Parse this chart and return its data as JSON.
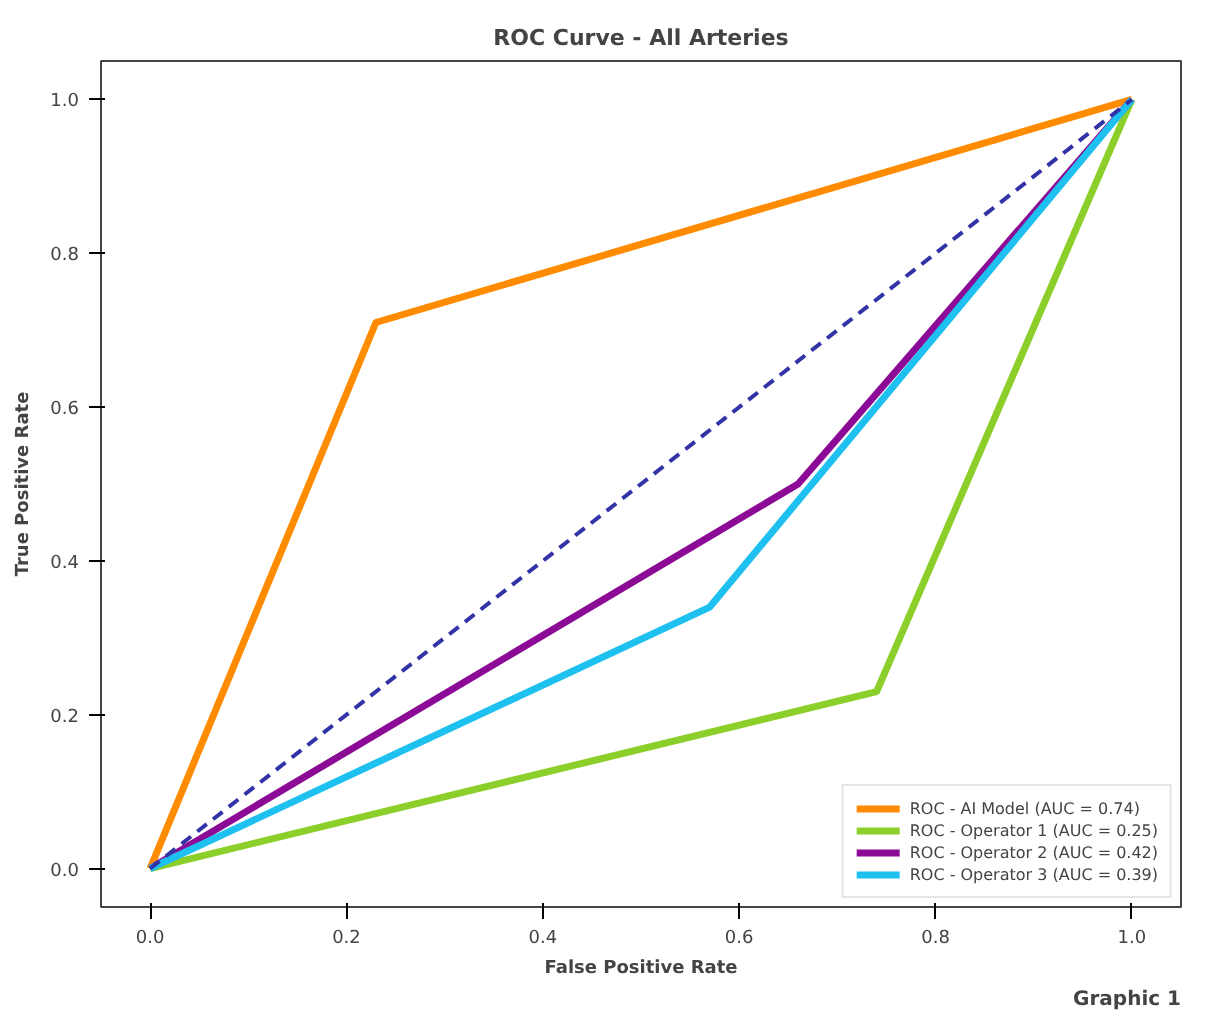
{
  "chart_data": {
    "type": "line",
    "title": "ROC Curve - All Arteries",
    "xlabel": "False Positive Rate",
    "ylabel": "True Positive Rate",
    "xlim": [
      -0.05,
      1.05
    ],
    "ylim": [
      -0.05,
      1.05
    ],
    "xticks": [
      {
        "value": 0,
        "label": "0.0"
      },
      0.2,
      0.4,
      0.6,
      0.8,
      {
        "value": 1,
        "label": "1.0"
      }
    ],
    "yticks": [
      {
        "value": 0,
        "label": "0.0"
      },
      0.2,
      0.4,
      0.6,
      0.8,
      {
        "value": 1,
        "label": "1.0"
      }
    ],
    "grid": false,
    "legend": "bottom right",
    "marker": "none",
    "series": [
      {
        "name": "ROC - AI Model (AUC = 0.74)",
        "color": "#ff8c00",
        "x": [
          0,
          0.23,
          1
        ],
        "values": [
          0,
          0.71,
          1
        ]
      },
      {
        "name": "ROC - Operator 1 (AUC = 0.25)",
        "color": "#8ccf2a",
        "x": [
          0,
          0.74,
          1
        ],
        "values": [
          0,
          0.23,
          1
        ]
      },
      {
        "name": "ROC - Operator 2 (AUC = 0.42)",
        "color": "#8b0a96",
        "x": [
          0,
          0.66,
          1
        ],
        "values": [
          0,
          0.5,
          1
        ]
      },
      {
        "name": "ROC - Operator 3 (AUC = 0.39)",
        "color": "#1ec0f0",
        "x": [
          0,
          0.57,
          1
        ],
        "values": [
          0,
          0.34,
          1
        ]
      },
      {
        "color": "#3333a8",
        "x": [
          0,
          1
        ],
        "values": [
          0,
          1
        ],
        "line_style": "dashed"
      }
    ],
    "annotations": [
      "Graphic 1"
    ]
  }
}
